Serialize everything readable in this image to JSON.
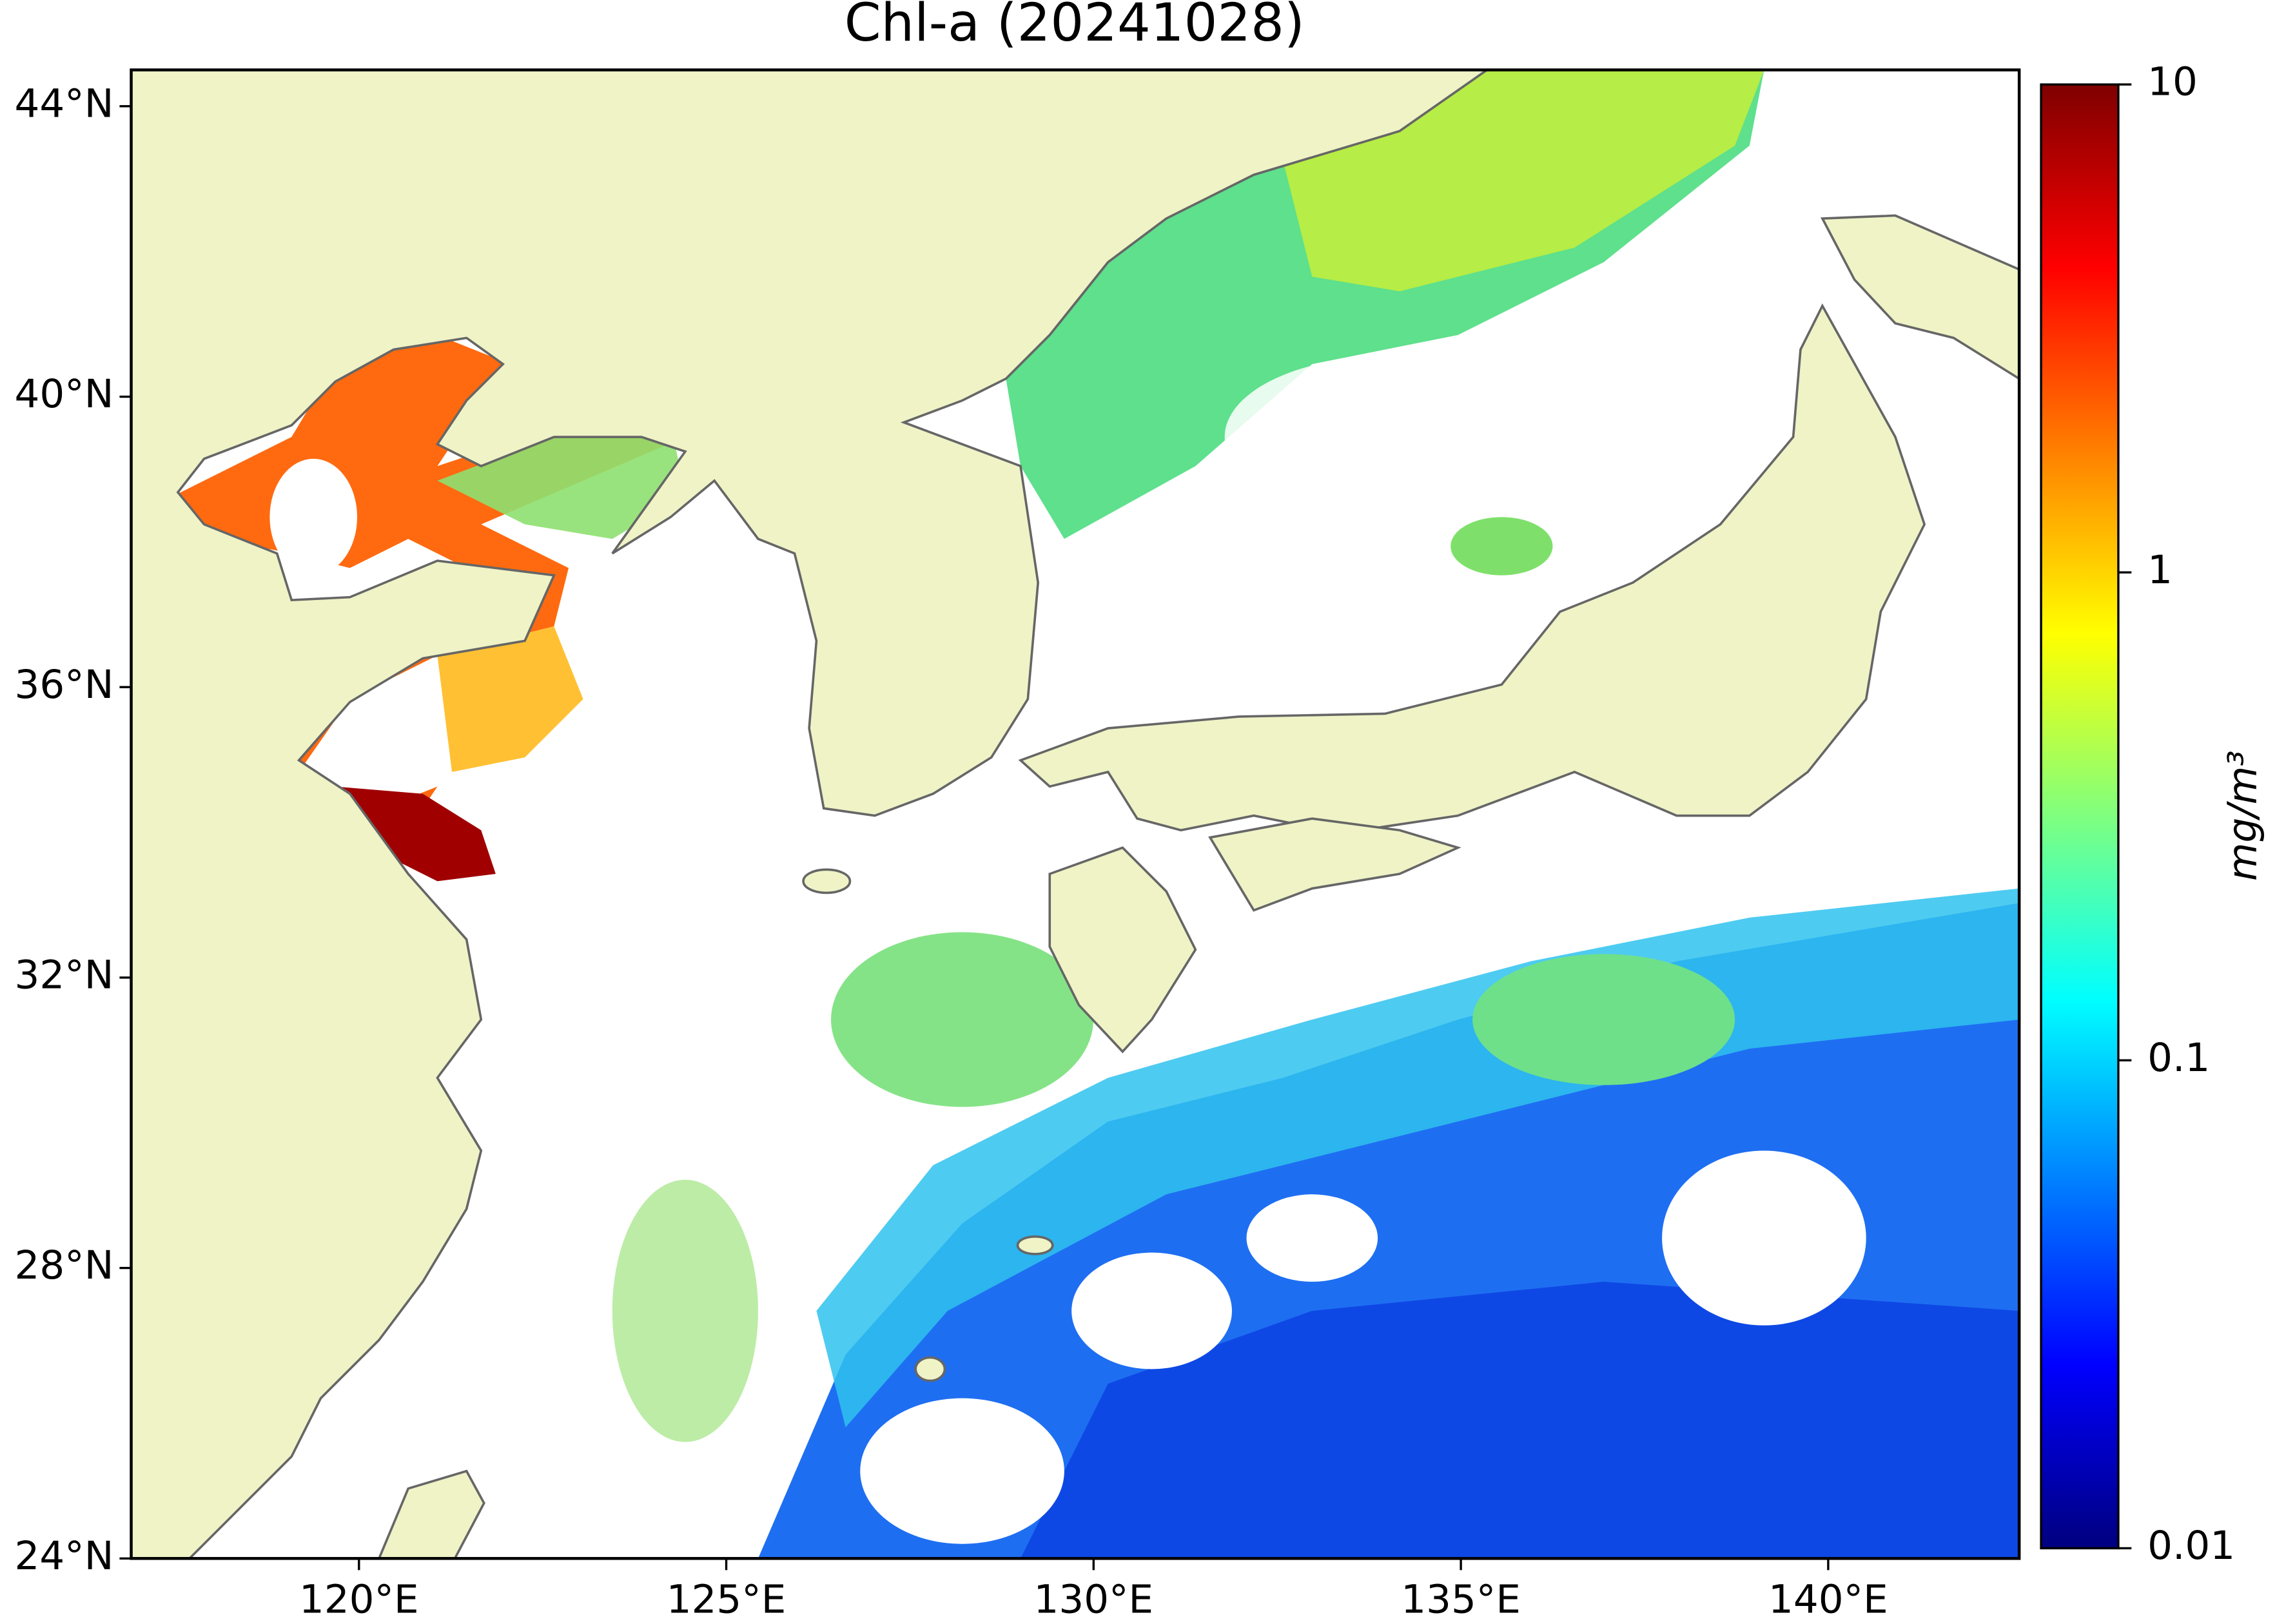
{
  "chart_data": {
    "type": "map",
    "title": "Chl-a (20241028)",
    "xlim": [
      116.9,
      142.6
    ],
    "ylim": [
      24,
      44.5
    ],
    "xticks": [
      {
        "value": 120,
        "label": "120°E"
      },
      {
        "value": 125,
        "label": "125°E"
      },
      {
        "value": 130,
        "label": "130°E"
      },
      {
        "value": 135,
        "label": "135°E"
      },
      {
        "value": 140,
        "label": "140°E"
      }
    ],
    "yticks": [
      {
        "value": 24,
        "label": "24°N"
      },
      {
        "value": 28,
        "label": "28°N"
      },
      {
        "value": 32,
        "label": "32°N"
      },
      {
        "value": 36,
        "label": "36°N"
      },
      {
        "value": 40,
        "label": "40°N"
      },
      {
        "value": 44,
        "label": "44°N"
      }
    ],
    "land_color": "#eff3c6",
    "colorbar": {
      "label": "mg/m³",
      "scale": "log",
      "lim": [
        0.01,
        10
      ],
      "ticks": [
        0.01,
        0.1,
        1,
        10
      ],
      "colormap": [
        "#00007f",
        "#0000ff",
        "#007fff",
        "#00ffff",
        "#7fff7f",
        "#ffff00",
        "#ff7f00",
        "#ff0000",
        "#7f0000"
      ]
    }
  }
}
